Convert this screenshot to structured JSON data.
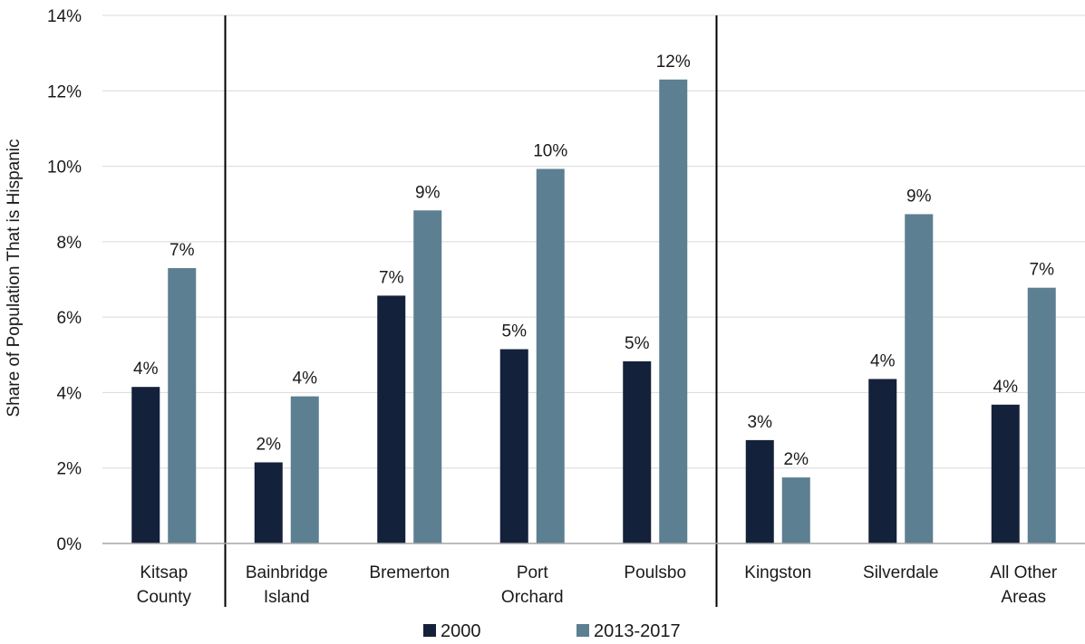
{
  "chart_data": {
    "type": "bar",
    "title": "",
    "xlabel": "",
    "ylabel": "Share of Population That is Hispanic",
    "ylim": [
      0,
      14
    ],
    "yticks": [
      0,
      2,
      4,
      6,
      8,
      10,
      12,
      14
    ],
    "ytick_labels": [
      "0%",
      "2%",
      "4%",
      "6%",
      "8%",
      "10%",
      "12%",
      "14%"
    ],
    "grid": true,
    "legend_position": "bottom",
    "categories": [
      [
        "Kitsap",
        "County"
      ],
      [
        "Bainbridge",
        "Island"
      ],
      [
        "Bremerton"
      ],
      [
        "Port",
        "Orchard"
      ],
      [
        "Poulsbo"
      ],
      [
        "Kingston"
      ],
      [
        "Silverdale"
      ],
      [
        "All Other",
        "Areas"
      ]
    ],
    "group_separators_after": [
      0,
      4
    ],
    "series": [
      {
        "name": "2000",
        "color": "#14213a",
        "values": [
          4.15,
          2.15,
          6.57,
          5.15,
          4.83,
          2.74,
          4.36,
          3.68
        ],
        "labels": [
          "4%",
          "2%",
          "7%",
          "5%",
          "5%",
          "3%",
          "4%",
          "4%"
        ]
      },
      {
        "name": "2013-2017",
        "color": "#5c7f91",
        "values": [
          7.3,
          3.9,
          8.83,
          9.93,
          12.3,
          1.75,
          8.73,
          6.78
        ],
        "labels": [
          "7%",
          "4%",
          "9%",
          "10%",
          "12%",
          "2%",
          "9%",
          "7%"
        ]
      }
    ]
  }
}
